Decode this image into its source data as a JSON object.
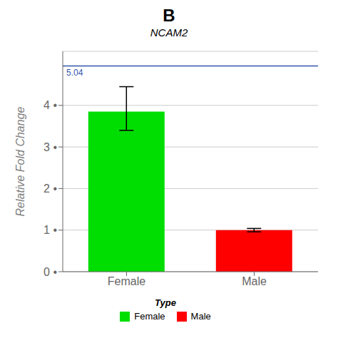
{
  "chart_data": {
    "type": "bar",
    "title": "B",
    "subtitle": "NCAM2",
    "ylabel": "Relative Fold Change",
    "categories": [
      "Female",
      "Male"
    ],
    "values": [
      3.85,
      1.0
    ],
    "error": [
      [
        0.45,
        0.6
      ],
      [
        0.04,
        0.04
      ]
    ],
    "colors": [
      "#00DD00",
      "#FF0000"
    ],
    "ylim": [
      0,
      5.3
    ],
    "yticks": [
      {
        "value": 0,
        "label": "0 •"
      },
      {
        "value": 1,
        "label": "1 •"
      },
      {
        "value": 2,
        "label": "2 •"
      },
      {
        "value": 3,
        "label": "3 •"
      },
      {
        "value": 4,
        "label": "4 •"
      }
    ],
    "grid": true,
    "legend": "bottom",
    "legend_title": "Type",
    "annotations": [
      {
        "text": "5.04",
        "y": 4.95,
        "color": "#3355AA"
      }
    ]
  }
}
